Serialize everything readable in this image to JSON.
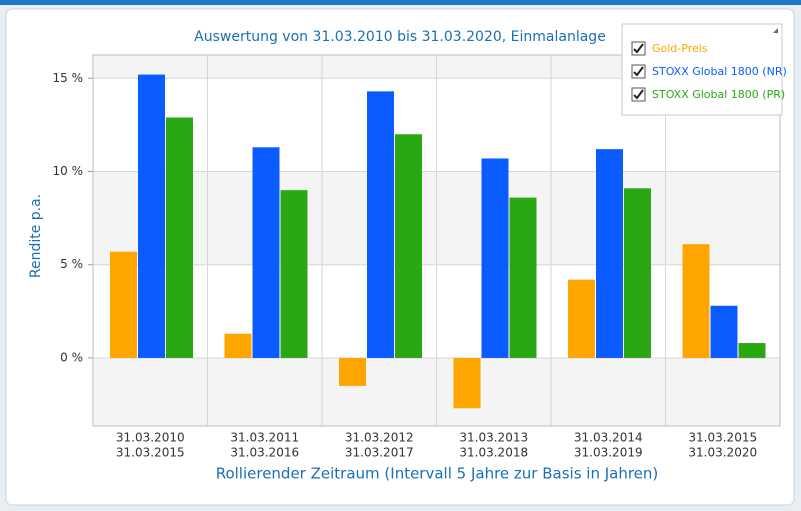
{
  "chart_data": {
    "type": "bar",
    "title": "Auswertung von 31.03.2010 bis 31.03.2020, Einmalanlage",
    "y_label": "Rendite p.a.",
    "x_label": "Rollierender Zeitraum (Intervall 5 Jahre zur Basis in Jahren)",
    "categories": [
      [
        "31.03.2010",
        "31.03.2015"
      ],
      [
        "31.03.2011",
        "31.03.2016"
      ],
      [
        "31.03.2012",
        "31.03.2017"
      ],
      [
        "31.03.2013",
        "31.03.2018"
      ],
      [
        "31.03.2014",
        "31.03.2019"
      ],
      [
        "31.03.2015",
        "31.03.2020"
      ]
    ],
    "series": [
      {
        "name": "Gold-Preis",
        "color": "#ffa500",
        "values": [
          5.7,
          1.3,
          -1.5,
          -2.7,
          4.2,
          6.1
        ]
      },
      {
        "name": "STOXX Global 1800 (NR)",
        "color": "#0a5cff",
        "values": [
          15.2,
          11.3,
          14.3,
          10.7,
          11.2,
          2.8
        ]
      },
      {
        "name": "STOXX Global 1800 (PR)",
        "color": "#2aa814",
        "values": [
          12.9,
          9.0,
          12.0,
          8.6,
          9.1,
          0.8
        ]
      }
    ],
    "ylim": [
      -3.65,
      16.25
    ],
    "yticks": [
      {
        "value": 0,
        "label": "0 %"
      },
      {
        "value": 5,
        "label": "5 %"
      },
      {
        "value": 10,
        "label": "10 %"
      },
      {
        "value": 15,
        "label": "15 %"
      }
    ],
    "grid": true,
    "legend": "top-right"
  }
}
